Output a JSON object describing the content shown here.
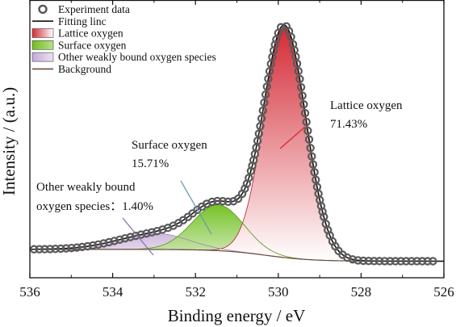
{
  "chart_data": {
    "type": "line",
    "xlabel": "Binding energy / eV",
    "ylabel": "Intensity / (a.u.)",
    "xlim": [
      536,
      526
    ],
    "x_reversed": true,
    "x_ticks": [
      "536",
      "534",
      "532",
      "530",
      "528",
      "526"
    ],
    "y_ticks_shown": false,
    "ylim": [
      0,
      1.0
    ],
    "legend": {
      "placement": "top-left",
      "entries": [
        {
          "label": "Experiment data",
          "style": "hollow-circle",
          "color": "#555555"
        },
        {
          "label": "Fitting linc",
          "style": "line",
          "color": "#111111"
        },
        {
          "label": "Lattice oxygen",
          "style": "gradient-box",
          "color": "#d42a35"
        },
        {
          "label": "Surface oxygen",
          "style": "gradient-box",
          "color": "#6fbf1c"
        },
        {
          "label": "Other weakly bound oxygen species",
          "style": "gradient-box",
          "color": "#c4a9d6"
        },
        {
          "label": "Background",
          "style": "line",
          "color": "#6b4a3a"
        }
      ]
    },
    "components": [
      {
        "name": "Lattice oxygen",
        "center": 529.85,
        "amplitude": 0.88,
        "sigma_low_be": 0.52,
        "sigma_high_be": 0.5,
        "color": "#d42a35"
      },
      {
        "name": "Surface oxygen",
        "center": 531.45,
        "amplitude": 0.175,
        "sigma_low_be": 0.62,
        "sigma_high_be": 0.62,
        "color": "#6fbf1c"
      },
      {
        "name": "Other weakly bound oxygen species",
        "center": 532.9,
        "amplitude": 0.06,
        "sigma_low_be": 0.75,
        "sigma_high_be": 0.95,
        "color": "#c4a9d6"
      }
    ],
    "background": {
      "high_be_value": 0.025,
      "low_be_value": -0.02,
      "step_center": 530.3,
      "step_width": 0.55
    },
    "experiment_x_range": [
      535.9,
      526.2
    ],
    "annotations": [
      {
        "lines": [
          "Lattice oxygen",
          "71.43%"
        ],
        "component": "Lattice oxygen"
      },
      {
        "lines": [
          "Surface oxygen",
          "15.71%"
        ],
        "component": "Surface oxygen"
      },
      {
        "lines": [
          "Other weakly bound",
          "oxygen species：1.40%"
        ],
        "component": "Other weakly bound oxygen species"
      }
    ]
  }
}
